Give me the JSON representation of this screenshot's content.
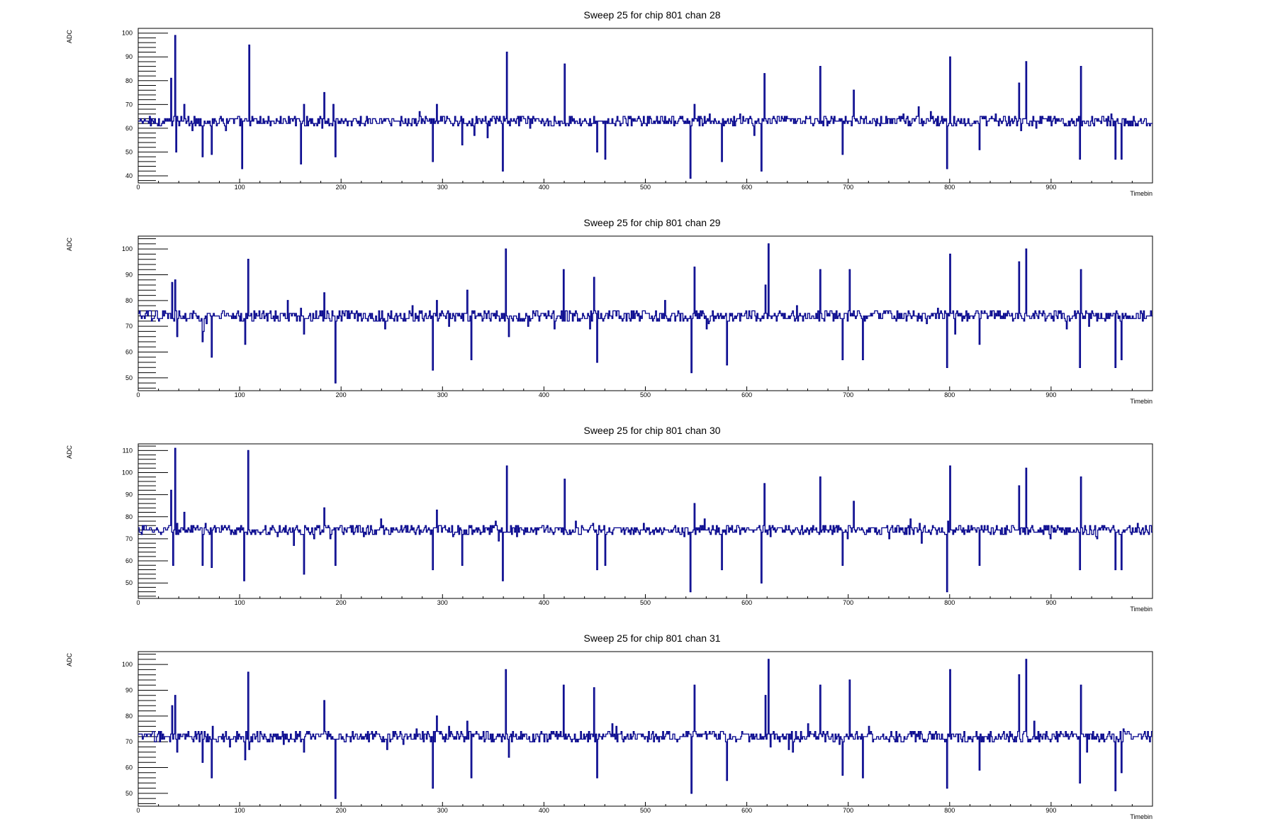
{
  "chart_data": [
    {
      "type": "line",
      "title": "Sweep 25 for chip 801 chan 28",
      "xlabel": "Timebin",
      "ylabel": "ADC",
      "xlim": [
        0,
        1000
      ],
      "ylim": [
        37,
        102
      ],
      "xticks": [
        0,
        100,
        200,
        300,
        400,
        500,
        600,
        700,
        800,
        900
      ],
      "yticks": [
        40,
        50,
        60,
        70,
        80,
        90,
        100
      ],
      "baseline": 63,
      "noise": 2,
      "color": "#00008b",
      "spikes": [
        [
          32,
          81
        ],
        [
          34,
          63
        ],
        [
          36,
          99
        ],
        [
          37,
          50
        ],
        [
          45,
          70
        ],
        [
          63,
          48
        ],
        [
          72,
          49
        ],
        [
          102,
          43
        ],
        [
          109,
          95
        ],
        [
          160,
          45
        ],
        [
          163,
          70
        ],
        [
          183,
          75
        ],
        [
          194,
          48
        ],
        [
          290,
          46
        ],
        [
          294,
          70
        ],
        [
          319,
          53
        ],
        [
          359,
          42
        ],
        [
          363,
          92
        ],
        [
          420,
          87
        ],
        [
          452,
          50
        ],
        [
          460,
          47
        ],
        [
          544,
          39
        ],
        [
          548,
          70
        ],
        [
          575,
          46
        ],
        [
          614,
          42
        ],
        [
          617,
          83
        ],
        [
          672,
          86
        ],
        [
          694,
          49
        ],
        [
          705,
          76
        ],
        [
          797,
          43
        ],
        [
          800,
          90
        ],
        [
          829,
          51
        ],
        [
          868,
          79
        ],
        [
          875,
          88
        ],
        [
          928,
          47
        ],
        [
          929,
          86
        ],
        [
          963,
          47
        ],
        [
          969,
          47
        ]
      ]
    },
    {
      "type": "line",
      "title": "Sweep 25 for chip 801 chan 29",
      "xlabel": "Timebin",
      "ylabel": "ADC",
      "xlim": [
        0,
        1000
      ],
      "ylim": [
        45,
        105
      ],
      "xticks": [
        0,
        100,
        200,
        300,
        400,
        500,
        600,
        700,
        800,
        900
      ],
      "yticks": [
        50,
        60,
        70,
        80,
        90,
        100
      ],
      "baseline": 74,
      "noise": 2,
      "color": "#00008b",
      "spikes": [
        [
          33,
          87
        ],
        [
          36,
          88
        ],
        [
          38,
          66
        ],
        [
          63,
          64
        ],
        [
          72,
          58
        ],
        [
          105,
          63
        ],
        [
          108,
          96
        ],
        [
          163,
          67
        ],
        [
          183,
          83
        ],
        [
          194,
          48
        ],
        [
          290,
          53
        ],
        [
          294,
          80
        ],
        [
          324,
          84
        ],
        [
          328,
          57
        ],
        [
          362,
          100
        ],
        [
          365,
          66
        ],
        [
          419,
          92
        ],
        [
          449,
          89
        ],
        [
          452,
          56
        ],
        [
          545,
          52
        ],
        [
          548,
          93
        ],
        [
          580,
          55
        ],
        [
          618,
          86
        ],
        [
          621,
          102
        ],
        [
          672,
          92
        ],
        [
          694,
          57
        ],
        [
          701,
          92
        ],
        [
          714,
          57
        ],
        [
          797,
          54
        ],
        [
          800,
          98
        ],
        [
          829,
          63
        ],
        [
          868,
          95
        ],
        [
          875,
          100
        ],
        [
          928,
          54
        ],
        [
          929,
          92
        ],
        [
          963,
          54
        ],
        [
          969,
          57
        ]
      ]
    },
    {
      "type": "line",
      "title": "Sweep 25 for chip 801 chan 30",
      "xlabel": "Timebin",
      "ylabel": "ADC",
      "xlim": [
        0,
        1000
      ],
      "ylim": [
        43,
        113
      ],
      "xticks": [
        0,
        100,
        200,
        300,
        400,
        500,
        600,
        700,
        800,
        900
      ],
      "yticks": [
        50,
        60,
        70,
        80,
        90,
        100,
        110
      ],
      "baseline": 74,
      "noise": 2,
      "color": "#00008b",
      "spikes": [
        [
          32,
          92
        ],
        [
          34,
          58
        ],
        [
          36,
          111
        ],
        [
          45,
          82
        ],
        [
          63,
          58
        ],
        [
          72,
          57
        ],
        [
          104,
          51
        ],
        [
          108,
          110
        ],
        [
          163,
          54
        ],
        [
          183,
          84
        ],
        [
          194,
          58
        ],
        [
          290,
          56
        ],
        [
          294,
          83
        ],
        [
          319,
          58
        ],
        [
          359,
          51
        ],
        [
          363,
          103
        ],
        [
          420,
          97
        ],
        [
          452,
          56
        ],
        [
          460,
          58
        ],
        [
          544,
          46
        ],
        [
          548,
          86
        ],
        [
          575,
          56
        ],
        [
          614,
          50
        ],
        [
          617,
          95
        ],
        [
          672,
          98
        ],
        [
          694,
          58
        ],
        [
          705,
          87
        ],
        [
          797,
          46
        ],
        [
          800,
          103
        ],
        [
          829,
          58
        ],
        [
          868,
          94
        ],
        [
          875,
          102
        ],
        [
          928,
          56
        ],
        [
          929,
          98
        ],
        [
          963,
          56
        ],
        [
          969,
          56
        ]
      ]
    },
    {
      "type": "line",
      "title": "Sweep 25 for chip 801 chan 31",
      "xlabel": "Timebin",
      "ylabel": "ADC",
      "xlim": [
        0,
        1000
      ],
      "ylim": [
        45,
        105
      ],
      "xticks": [
        0,
        100,
        200,
        300,
        400,
        500,
        600,
        700,
        800,
        900
      ],
      "yticks": [
        50,
        60,
        70,
        80,
        90,
        100
      ],
      "baseline": 72,
      "noise": 2,
      "color": "#00008b",
      "spikes": [
        [
          33,
          84
        ],
        [
          36,
          88
        ],
        [
          38,
          66
        ],
        [
          63,
          62
        ],
        [
          72,
          56
        ],
        [
          105,
          63
        ],
        [
          108,
          97
        ],
        [
          163,
          66
        ],
        [
          183,
          86
        ],
        [
          194,
          48
        ],
        [
          290,
          52
        ],
        [
          294,
          80
        ],
        [
          324,
          78
        ],
        [
          328,
          56
        ],
        [
          362,
          98
        ],
        [
          365,
          64
        ],
        [
          419,
          92
        ],
        [
          449,
          91
        ],
        [
          452,
          56
        ],
        [
          545,
          50
        ],
        [
          548,
          92
        ],
        [
          580,
          55
        ],
        [
          618,
          88
        ],
        [
          621,
          102
        ],
        [
          672,
          92
        ],
        [
          694,
          57
        ],
        [
          701,
          94
        ],
        [
          714,
          56
        ],
        [
          797,
          52
        ],
        [
          800,
          98
        ],
        [
          829,
          59
        ],
        [
          868,
          96
        ],
        [
          875,
          102
        ],
        [
          928,
          54
        ],
        [
          929,
          92
        ],
        [
          963,
          51
        ],
        [
          969,
          58
        ]
      ]
    }
  ]
}
